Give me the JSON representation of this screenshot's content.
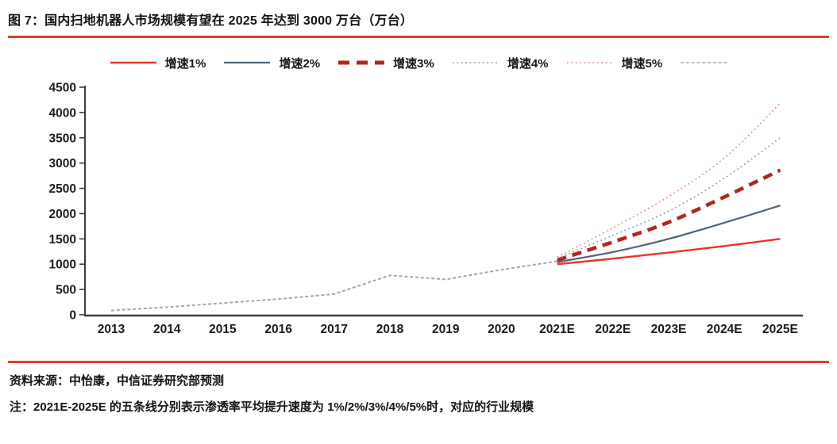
{
  "title": "图 7：国内扫地机器人市场规模有望在 2025 年达到 3000 万台（万台）",
  "accent_color": "#e23b2e",
  "legend": {
    "items": [
      {
        "label": "增速1%",
        "color": "#e8342b",
        "pattern": "solid",
        "width": 2.6
      },
      {
        "label": "增速2%",
        "color": "#50657c",
        "pattern": "solid",
        "width": 2.2
      },
      {
        "label": "增速3%",
        "color": "#b3261e",
        "pattern": "dashed",
        "width": 5
      },
      {
        "label": "增速4%",
        "color": "#9aa2a8",
        "pattern": "dotted",
        "width": 1.8
      },
      {
        "label": "增速5%",
        "color": "#f0938e",
        "pattern": "dotted",
        "width": 1.8
      },
      {
        "label": "",
        "color": "#b9aec8",
        "pattern": "dashed-fine",
        "width": 1.7
      }
    ]
  },
  "chart_data": {
    "type": "line",
    "title": "图 7：国内扫地机器人市场规模有望在 2025 年达到 3000 万台（万台）",
    "unit": "万台",
    "categories": [
      "2013",
      "2014",
      "2015",
      "2016",
      "2017",
      "2018",
      "2019",
      "2020",
      "2021E",
      "2022E",
      "2023E",
      "2024E",
      "2025E"
    ],
    "ylim": [
      0,
      4500
    ],
    "ytick_step": 500,
    "grid": false,
    "legend_position": "top",
    "series": [
      {
        "id": "historical",
        "name": "",
        "color": "#a9a3af",
        "pattern": "dashed-fine",
        "width": 2,
        "smooth": false,
        "start_index": 0,
        "values": [
          85,
          150,
          230,
          310,
          410,
          780,
          700,
          890,
          1060
        ]
      },
      {
        "id": "growth-1pct",
        "name": "增速1%",
        "color": "#e8342b",
        "pattern": "solid",
        "width": 2.4,
        "smooth": true,
        "start_index": 8,
        "values": [
          1000,
          1110,
          1230,
          1360,
          1500
        ]
      },
      {
        "id": "growth-2pct",
        "name": "增速2%",
        "color": "#50657c",
        "pattern": "solid",
        "width": 2.2,
        "smooth": true,
        "start_index": 8,
        "values": [
          1040,
          1240,
          1500,
          1820,
          2160
        ]
      },
      {
        "id": "growth-3pct",
        "name": "增速3%",
        "color": "#b3261e",
        "pattern": "dashed",
        "width": 4.6,
        "smooth": true,
        "start_index": 8,
        "values": [
          1080,
          1440,
          1830,
          2330,
          2860
        ]
      },
      {
        "id": "growth-4pct",
        "name": "增速4%",
        "color": "#9aa2a8",
        "pattern": "dotted",
        "width": 1.8,
        "smooth": true,
        "start_index": 8,
        "values": [
          1110,
          1570,
          2050,
          2700,
          3500
        ]
      },
      {
        "id": "growth-5pct",
        "name": "增速5%",
        "color": "#f0938e",
        "pattern": "dotted",
        "width": 1.8,
        "smooth": true,
        "start_index": 8,
        "values": [
          1140,
          1720,
          2340,
          3100,
          4180
        ]
      }
    ]
  },
  "footer": {
    "source": "资料来源：中怡康，中信证券研究部预测",
    "note": "注：2021E-2025E 的五条线分别表示渗透率平均提升速度为 1%/2%/3%/4%/5%时，对应的行业规模"
  }
}
